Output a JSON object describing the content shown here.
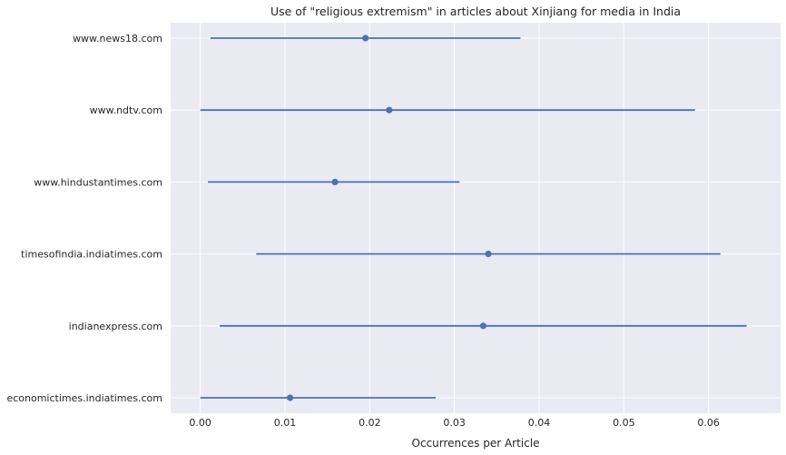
{
  "chart_data": {
    "type": "errorbar",
    "title": "Use of \"religious extremism\" in articles about Xinjiang for media in India",
    "xlabel": "Occurrences per Article",
    "ylabel": "",
    "xlim": [
      -0.0035,
      0.0685
    ],
    "xticks": [
      0.0,
      0.01,
      0.02,
      0.03,
      0.04,
      0.05,
      0.06
    ],
    "xtick_labels": [
      "0.00",
      "0.01",
      "0.02",
      "0.03",
      "0.04",
      "0.05",
      "0.06"
    ],
    "grid": true,
    "colors": {
      "background": "#eaeaf2",
      "grid": "#ffffff",
      "series": "#4c72b0",
      "text": "#262626"
    },
    "categories": [
      "www.news18.com",
      "www.ndtv.com",
      "www.hindustantimes.com",
      "timesofindia.indiatimes.com",
      "indianexpress.com",
      "economictimes.indiatimes.com"
    ],
    "values": [
      0.0195,
      0.0223,
      0.0159,
      0.034,
      0.0334,
      0.0106
    ],
    "lower": [
      0.0012,
      0.0,
      0.0009,
      0.0066,
      0.0023,
      0.0
    ],
    "upper": [
      0.0378,
      0.0584,
      0.0306,
      0.0614,
      0.0645,
      0.0278
    ]
  }
}
